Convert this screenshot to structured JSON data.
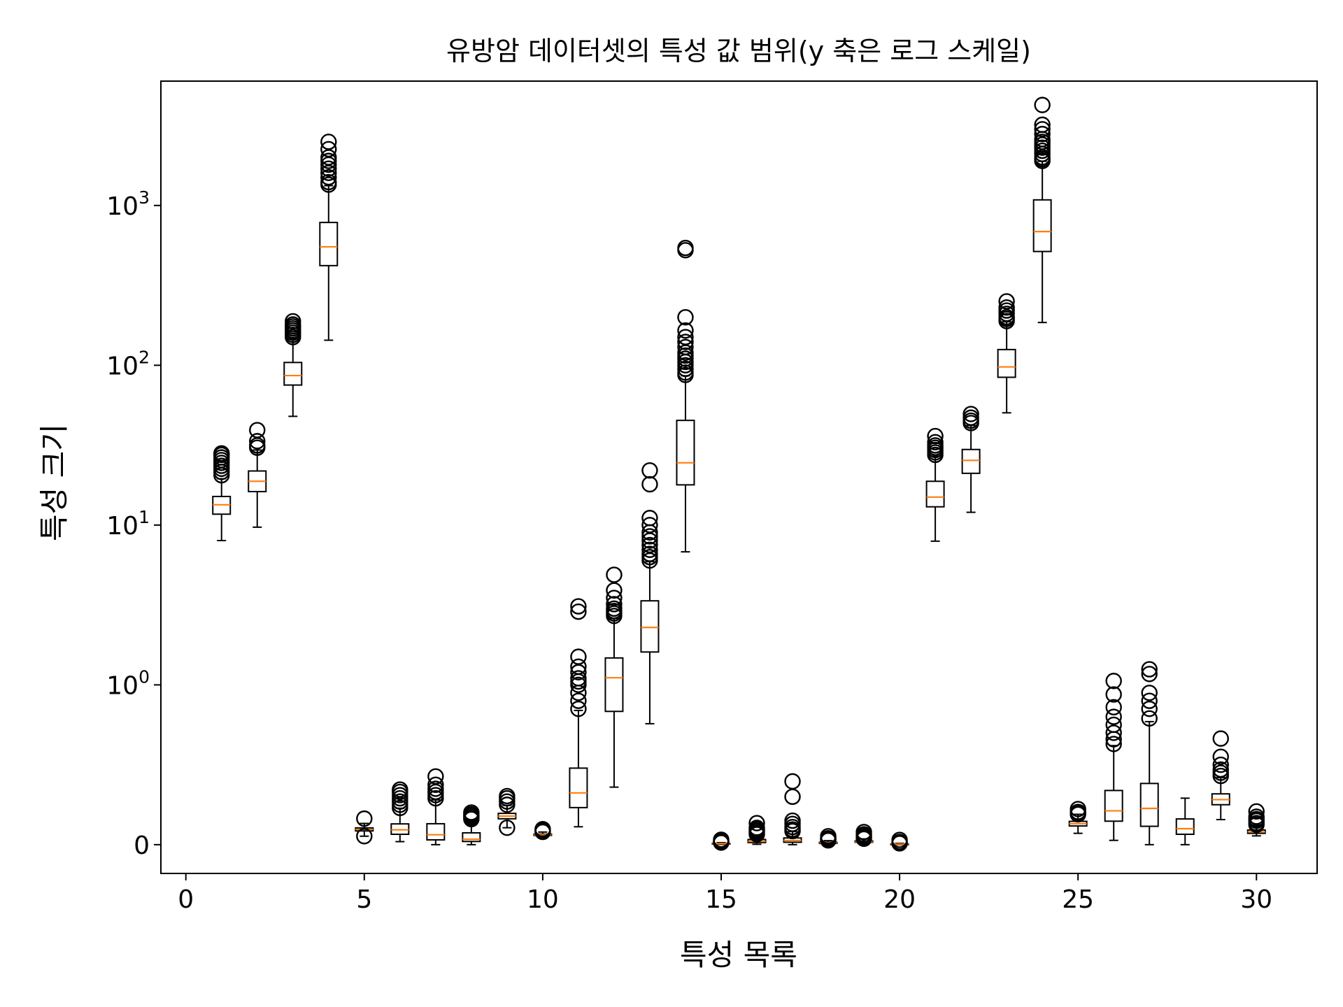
{
  "chart_data": {
    "type": "box",
    "title": "유방암 데이터셋의 특성 값 범위(y 축은 로그 스케일)",
    "xlabel": "특성 목록",
    "ylabel": "특성 크기",
    "yscale": "symlog",
    "xlim": [
      -0.7,
      31.7
    ],
    "xticks": [
      {
        "value": 0,
        "label": "0"
      },
      {
        "value": 5,
        "label": "5"
      },
      {
        "value": 10,
        "label": "10"
      },
      {
        "value": 15,
        "label": "15"
      },
      {
        "value": 20,
        "label": "20"
      },
      {
        "value": 25,
        "label": "25"
      },
      {
        "value": 30,
        "label": "30"
      }
    ],
    "yticks": [
      {
        "value": 0,
        "label": "0",
        "sup": ""
      },
      {
        "value": 1,
        "label": "10",
        "sup": "0"
      },
      {
        "value": 10,
        "label": "10",
        "sup": "1"
      },
      {
        "value": 100,
        "label": "10",
        "sup": "2"
      },
      {
        "value": 1000,
        "label": "10",
        "sup": "3"
      }
    ],
    "grid": false,
    "colors": {
      "box": "#000000",
      "median": "#ff7f0e",
      "flier": "#000000"
    },
    "boxes": [
      {
        "x": 1,
        "whislo": 8.0,
        "q1": 11.7,
        "med": 13.4,
        "q3": 15.1,
        "whishi": 19.5,
        "fliers": [
          20.5,
          21.5,
          22.5,
          23.5,
          24.5,
          25.5,
          26.5,
          27.5,
          28.1
        ]
      },
      {
        "x": 2,
        "whislo": 9.7,
        "q1": 16.2,
        "med": 18.8,
        "q3": 21.8,
        "whishi": 29.5,
        "fliers": [
          30.5,
          31.5,
          33.5,
          39.3
        ]
      },
      {
        "x": 3,
        "whislo": 47.9,
        "q1": 75.2,
        "med": 86.2,
        "q3": 104.1,
        "whishi": 147,
        "fliers": [
          150,
          155,
          160,
          165,
          170,
          175,
          180,
          188.5
        ]
      },
      {
        "x": 4,
        "whislo": 143.5,
        "q1": 420.3,
        "med": 551.1,
        "q3": 782.7,
        "whishi": 1330,
        "fliers": [
          1350,
          1400,
          1500,
          1600,
          1700,
          1800,
          1900,
          2000,
          2250,
          2501
        ]
      },
      {
        "x": 5,
        "whislo": 0.053,
        "q1": 0.086,
        "med": 0.096,
        "q3": 0.105,
        "whishi": 0.133,
        "fliers": [
          0.053,
          0.163
        ]
      },
      {
        "x": 6,
        "whislo": 0.019,
        "q1": 0.065,
        "med": 0.093,
        "q3": 0.13,
        "whishi": 0.228,
        "fliers": [
          0.23,
          0.25,
          0.27,
          0.29,
          0.31,
          0.33,
          0.345
        ]
      },
      {
        "x": 7,
        "whislo": 0.0,
        "q1": 0.03,
        "med": 0.062,
        "q3": 0.131,
        "whishi": 0.28,
        "fliers": [
          0.29,
          0.31,
          0.33,
          0.35,
          0.375,
          0.427
        ]
      },
      {
        "x": 8,
        "whislo": 0.0,
        "q1": 0.02,
        "med": 0.034,
        "q3": 0.074,
        "whishi": 0.152,
        "fliers": [
          0.16,
          0.17,
          0.18,
          0.19,
          0.201
        ]
      },
      {
        "x": 9,
        "whislo": 0.106,
        "q1": 0.162,
        "med": 0.179,
        "q3": 0.196,
        "whishi": 0.246,
        "fliers": [
          0.106,
          0.25,
          0.27,
          0.29,
          0.304
        ]
      },
      {
        "x": 10,
        "whislo": 0.05,
        "q1": 0.058,
        "med": 0.062,
        "q3": 0.066,
        "whishi": 0.079,
        "fliers": [
          0.08,
          0.085,
          0.09,
          0.097
        ]
      },
      {
        "x": 11,
        "whislo": 0.112,
        "q1": 0.232,
        "med": 0.324,
        "q3": 0.479,
        "whishi": 0.84,
        "fliers": [
          0.85,
          0.9,
          0.95,
          1.0,
          1.05,
          1.1,
          1.2,
          1.3,
          1.5,
          2.87,
          3.1
        ]
      },
      {
        "x": 12,
        "whislo": 0.36,
        "q1": 0.834,
        "med": 1.108,
        "q3": 1.474,
        "whishi": 2.6,
        "fliers": [
          2.7,
          2.8,
          2.9,
          3.0,
          3.2,
          3.5,
          3.9,
          4.885
        ]
      },
      {
        "x": 13,
        "whislo": 0.757,
        "q1": 1.606,
        "med": 2.287,
        "q3": 3.357,
        "whishi": 5.9,
        "fliers": [
          6.0,
          6.3,
          6.6,
          7.0,
          7.5,
          8.0,
          8.5,
          9.0,
          10.0,
          11.07,
          18.0,
          21.98
        ]
      },
      {
        "x": 14,
        "whislo": 6.8,
        "q1": 17.85,
        "med": 24.53,
        "q3": 45.19,
        "whishi": 86,
        "fliers": [
          87,
          90,
          95,
          100,
          105,
          110,
          115,
          120,
          130,
          140,
          150,
          165,
          199.7,
          525,
          542.2
        ]
      },
      {
        "x": 15,
        "whislo": 0.0017,
        "q1": 0.0052,
        "med": 0.0064,
        "q3": 0.0082,
        "whishi": 0.0125,
        "fliers": [
          0.013,
          0.015,
          0.018,
          0.021,
          0.031
        ]
      },
      {
        "x": 16,
        "whislo": 0.0023,
        "q1": 0.0131,
        "med": 0.0204,
        "q3": 0.0324,
        "whishi": 0.061,
        "fliers": [
          0.065,
          0.075,
          0.085,
          0.095,
          0.105,
          0.135
        ]
      },
      {
        "x": 17,
        "whislo": 0.0,
        "q1": 0.0151,
        "med": 0.0259,
        "q3": 0.0421,
        "whishi": 0.082,
        "fliers": [
          0.085,
          0.095,
          0.11,
          0.13,
          0.15,
          0.3,
          0.396
        ]
      },
      {
        "x": 18,
        "whislo": 0.0,
        "q1": 0.0076,
        "med": 0.0109,
        "q3": 0.0147,
        "whishi": 0.025,
        "fliers": [
          0.027,
          0.032,
          0.036,
          0.04,
          0.0528
        ]
      },
      {
        "x": 19,
        "whislo": 0.0079,
        "q1": 0.0152,
        "med": 0.0187,
        "q3": 0.0235,
        "whishi": 0.036,
        "fliers": [
          0.037,
          0.045,
          0.055,
          0.065,
          0.079
        ]
      },
      {
        "x": 20,
        "whislo": 0.0009,
        "q1": 0.0022,
        "med": 0.0032,
        "q3": 0.0046,
        "whishi": 0.008,
        "fliers": [
          0.0085,
          0.01,
          0.013,
          0.017,
          0.0298
        ]
      },
      {
        "x": 21,
        "whislo": 7.93,
        "q1": 13.01,
        "med": 14.97,
        "q3": 18.79,
        "whishi": 27.0,
        "fliers": [
          27.5,
          28.5,
          29.5,
          30.5,
          31.5,
          33.0,
          36.04
        ]
      },
      {
        "x": 22,
        "whislo": 12.02,
        "q1": 21.08,
        "med": 25.41,
        "q3": 29.72,
        "whishi": 42.0,
        "fliers": [
          43.5,
          45.0,
          47.0,
          49.54
        ]
      },
      {
        "x": 23,
        "whislo": 50.41,
        "q1": 84.11,
        "med": 97.66,
        "q3": 125.4,
        "whishi": 187,
        "fliers": [
          189,
          195,
          200,
          210,
          220,
          230,
          251.2
        ]
      },
      {
        "x": 24,
        "whislo": 185.2,
        "q1": 515.3,
        "med": 686.5,
        "q3": 1084,
        "whishi": 1890,
        "fliers": [
          1900,
          1950,
          2000,
          2100,
          2200,
          2300,
          2400,
          2500,
          2600,
          2800,
          3000,
          3200,
          4254
        ]
      },
      {
        "x": 25,
        "whislo": 0.071,
        "q1": 0.117,
        "med": 0.131,
        "q3": 0.146,
        "whishi": 0.19,
        "fliers": [
          0.19,
          0.2,
          0.205,
          0.223
        ]
      },
      {
        "x": 26,
        "whislo": 0.027,
        "q1": 0.147,
        "med": 0.212,
        "q3": 0.339,
        "whishi": 0.62,
        "fliers": [
          0.63,
          0.66,
          0.7,
          0.75,
          0.8,
          0.86,
          0.94,
          1.058
        ]
      },
      {
        "x": 27,
        "whislo": 0.0,
        "q1": 0.115,
        "med": 0.227,
        "q3": 0.383,
        "whishi": 0.77,
        "fliers": [
          0.79,
          0.85,
          0.9,
          0.95,
          1.17,
          1.252
        ]
      },
      {
        "x": 28,
        "whislo": 0.0,
        "q1": 0.065,
        "med": 0.1,
        "q3": 0.161,
        "whishi": 0.291,
        "fliers": []
      },
      {
        "x": 29,
        "whislo": 0.157,
        "q1": 0.25,
        "med": 0.282,
        "q3": 0.318,
        "whishi": 0.42,
        "fliers": [
          0.43,
          0.45,
          0.47,
          0.5,
          0.55,
          0.664
        ]
      },
      {
        "x": 30,
        "whislo": 0.055,
        "q1": 0.071,
        "med": 0.08,
        "q3": 0.092,
        "whishi": 0.124,
        "fliers": [
          0.125,
          0.135,
          0.15,
          0.16,
          0.175,
          0.208
        ]
      }
    ]
  }
}
